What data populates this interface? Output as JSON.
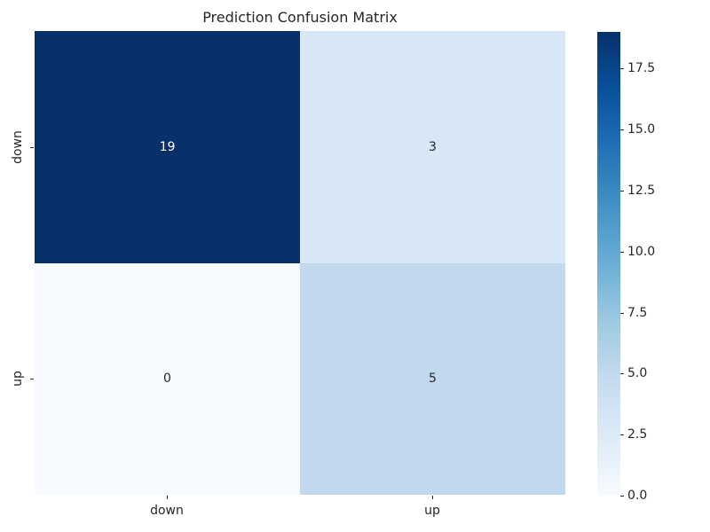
{
  "chart_data": {
    "type": "heatmap",
    "title": "Prediction Confusion Matrix",
    "x_categories": [
      "down",
      "up"
    ],
    "y_categories": [
      "down",
      "up"
    ],
    "values": [
      [
        19,
        3
      ],
      [
        0,
        5
      ]
    ],
    "vmin": 0,
    "vmax": 19,
    "colormap": "Blues",
    "colormap_stops": [
      "#f7fbff",
      "#deebf7",
      "#c6dbef",
      "#9ecae1",
      "#6baed6",
      "#4292c6",
      "#2171b5",
      "#08519c",
      "#08306b"
    ],
    "text_color": "#262626",
    "legend_position": "right-colorbar",
    "grid": false,
    "cells": [
      {
        "row": "down",
        "col": "down",
        "value": "19",
        "bg": "#08306b",
        "fg": "#ffffff"
      },
      {
        "row": "down",
        "col": "up",
        "value": "3",
        "bg": "#d8e7f5",
        "fg": "#262626"
      },
      {
        "row": "up",
        "col": "down",
        "value": "0",
        "bg": "#f7fbff",
        "fg": "#262626"
      },
      {
        "row": "up",
        "col": "up",
        "value": "5",
        "bg": "#c2d9ed",
        "fg": "#262626"
      }
    ],
    "colorbar_ticks": [
      {
        "value": 0.0,
        "label": "0.0"
      },
      {
        "value": 2.5,
        "label": "2.5"
      },
      {
        "value": 5.0,
        "label": "5.0"
      },
      {
        "value": 7.5,
        "label": "7.5"
      },
      {
        "value": 10.0,
        "label": "10.0"
      },
      {
        "value": 12.5,
        "label": "12.5"
      },
      {
        "value": 15.0,
        "label": "15.0"
      },
      {
        "value": 17.5,
        "label": "17.5"
      }
    ]
  }
}
